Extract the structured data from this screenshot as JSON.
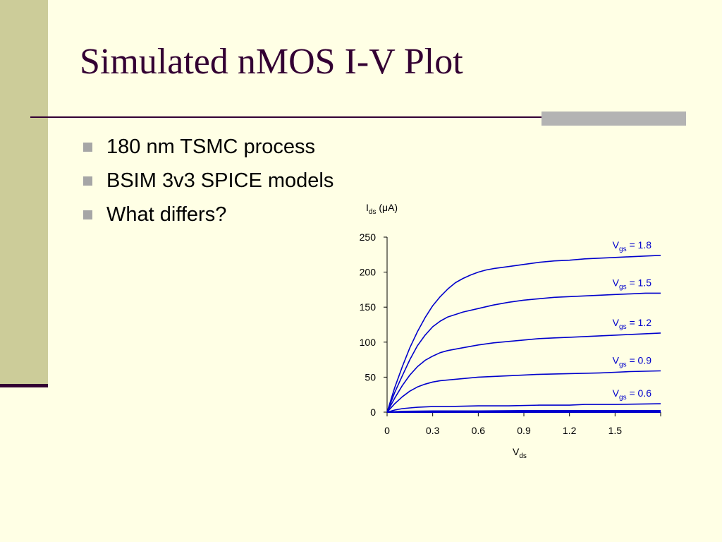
{
  "slide": {
    "title": "Simulated nMOS I-V Plot",
    "bullets": [
      "180 nm TSMC process",
      "BSIM 3v3 SPICE models",
      "What differs?"
    ]
  },
  "colors": {
    "background": "#FFFFE5",
    "title": "#330033",
    "left_band": "#CCCC99",
    "curve": "#0000CC"
  },
  "chart_data": {
    "type": "line",
    "xlabel": {
      "main": "V",
      "sub": "ds"
    },
    "ylabel": {
      "main": "I",
      "sub": "ds",
      "unit": " (μA)"
    },
    "xlim": [
      0,
      1.8
    ],
    "ylim": [
      0,
      250
    ],
    "xticks": [
      0,
      0.3,
      0.6,
      0.9,
      1.2,
      1.5,
      1.8
    ],
    "xtick_labels": [
      "0",
      "0.3",
      "0.6",
      "0.9",
      "1.2",
      "1.5",
      ""
    ],
    "yticks": [
      0,
      50,
      100,
      150,
      200,
      250
    ],
    "ytick_labels": [
      "0",
      "50",
      "100",
      "150",
      "200",
      "250"
    ],
    "grid": false,
    "series": [
      {
        "label": {
          "main": "V",
          "sub": "gs",
          "eq": " = 1.8"
        },
        "x": [
          0,
          0.05,
          0.1,
          0.15,
          0.2,
          0.25,
          0.3,
          0.35,
          0.4,
          0.45,
          0.5,
          0.55,
          0.6,
          0.65,
          0.7,
          0.8,
          0.9,
          1.0,
          1.1,
          1.2,
          1.3,
          1.4,
          1.5,
          1.6,
          1.7,
          1.8
        ],
        "y": [
          0,
          35,
          65,
          92,
          115,
          135,
          152,
          165,
          176,
          185,
          191,
          196,
          200,
          203,
          205,
          208,
          211,
          214,
          216,
          217,
          219,
          220,
          221,
          222,
          223,
          224
        ]
      },
      {
        "label": {
          "main": "V",
          "sub": "gs",
          "eq": " = 1.5"
        },
        "x": [
          0,
          0.05,
          0.1,
          0.15,
          0.2,
          0.25,
          0.3,
          0.35,
          0.4,
          0.5,
          0.6,
          0.7,
          0.8,
          0.9,
          1.0,
          1.1,
          1.2,
          1.3,
          1.4,
          1.5,
          1.6,
          1.7,
          1.8
        ],
        "y": [
          0,
          28,
          52,
          75,
          95,
          110,
          122,
          130,
          136,
          143,
          148,
          153,
          157,
          160,
          162,
          164,
          165,
          166,
          167,
          168,
          169,
          170,
          170
        ]
      },
      {
        "label": {
          "main": "V",
          "sub": "gs",
          "eq": " = 1.2"
        },
        "x": [
          0,
          0.05,
          0.1,
          0.15,
          0.2,
          0.25,
          0.3,
          0.35,
          0.4,
          0.5,
          0.6,
          0.7,
          0.8,
          0.9,
          1.0,
          1.1,
          1.2,
          1.3,
          1.4,
          1.5,
          1.6,
          1.7,
          1.8
        ],
        "y": [
          0,
          20,
          38,
          53,
          65,
          74,
          80,
          85,
          88,
          92,
          96,
          99,
          101,
          103,
          105,
          106,
          107,
          108,
          109,
          110,
          111,
          112,
          113
        ]
      },
      {
        "label": {
          "main": "V",
          "sub": "gs",
          "eq": " = 0.9"
        },
        "x": [
          0,
          0.05,
          0.1,
          0.15,
          0.2,
          0.25,
          0.3,
          0.35,
          0.4,
          0.5,
          0.6,
          0.7,
          0.8,
          0.9,
          1.0,
          1.2,
          1.4,
          1.5,
          1.6,
          1.8
        ],
        "y": [
          0,
          12,
          22,
          30,
          36,
          40,
          43,
          45,
          46,
          48,
          50,
          51,
          52,
          53,
          54,
          55,
          56,
          57,
          58,
          59
        ]
      },
      {
        "label": {
          "main": "V",
          "sub": "gs",
          "eq": " = 0.6"
        },
        "x": [
          0,
          0.05,
          0.1,
          0.15,
          0.2,
          0.3,
          0.4,
          0.6,
          0.8,
          1.0,
          1.2,
          1.3,
          1.5,
          1.8
        ],
        "y": [
          0,
          3,
          5,
          6,
          7,
          8,
          8,
          9,
          9,
          10,
          10,
          11,
          11,
          12
        ]
      },
      {
        "label": null,
        "x": [
          0,
          0.1,
          0.3,
          0.6,
          0.9,
          1.2,
          1.5,
          1.8
        ],
        "y": [
          0,
          1,
          1.5,
          1.5,
          2,
          2,
          2,
          2
        ]
      },
      {
        "label": null,
        "x": [
          0,
          1.8
        ],
        "y": [
          0,
          0
        ]
      }
    ]
  }
}
